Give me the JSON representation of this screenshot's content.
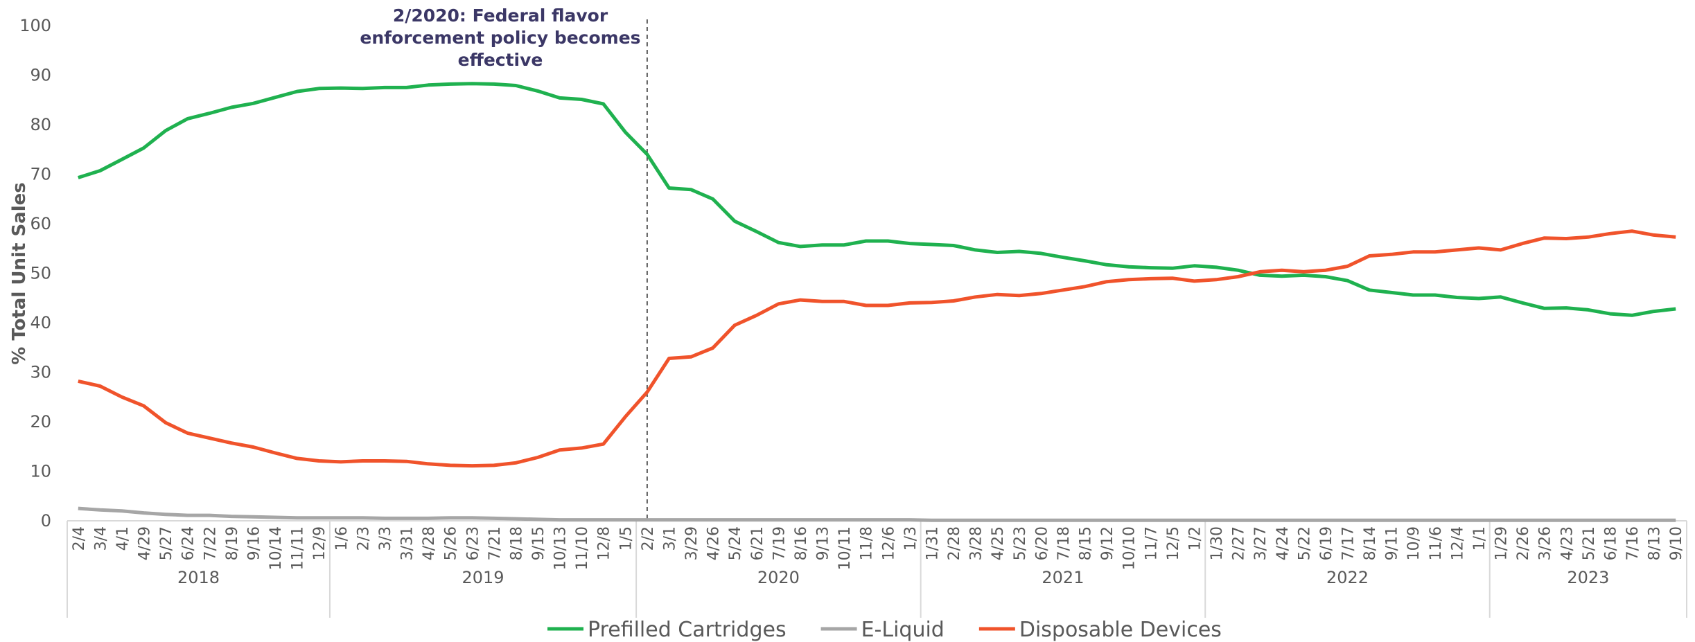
{
  "chart_data": {
    "type": "line",
    "y_axis_label": "% Total Unit Sales",
    "annotation": [
      "2/2020: Federal flavor",
      "enforcement policy becomes",
      "effective"
    ],
    "categories": [
      "2/4",
      "3/4",
      "4/1",
      "4/29",
      "5/27",
      "6/24",
      "7/22",
      "8/19",
      "9/16",
      "10/14",
      "11/11",
      "12/9",
      "1/6",
      "2/3",
      "3/3",
      "3/31",
      "4/28",
      "5/26",
      "6/23",
      "7/21",
      "8/18",
      "9/15",
      "10/13",
      "11/10",
      "12/8",
      "1/5",
      "2/2",
      "3/1",
      "3/29",
      "4/26",
      "5/24",
      "6/21",
      "7/19",
      "8/16",
      "9/13",
      "10/11",
      "11/8",
      "12/6",
      "1/3",
      "1/31",
      "2/28",
      "3/28",
      "4/25",
      "5/23",
      "6/20",
      "7/18",
      "8/15",
      "9/12",
      "10/10",
      "11/7",
      "12/5",
      "1/2",
      "1/30",
      "2/27",
      "3/27",
      "4/24",
      "5/22",
      "6/19",
      "7/17",
      "8/14",
      "9/11",
      "10/9",
      "11/6",
      "12/4",
      "1/1",
      "1/29",
      "2/26",
      "3/26",
      "4/23",
      "5/21",
      "6/18",
      "7/16",
      "8/13",
      "9/10"
    ],
    "groups": [
      {
        "label": "2018",
        "count": 12
      },
      {
        "label": "2019",
        "count": 14
      },
      {
        "label": "2020",
        "count": 13
      },
      {
        "label": "2021",
        "count": 13
      },
      {
        "label": "2022",
        "count": 13
      },
      {
        "label": "2023",
        "count": 9
      }
    ],
    "series": [
      {
        "name": "Prefilled Cartridges",
        "color": "#1fb14f",
        "values": [
          69.3,
          70.7,
          73,
          75.3,
          78.8,
          81.2,
          82.3,
          83.5,
          84.3,
          85.5,
          86.7,
          87.3,
          87.4,
          87.3,
          87.5,
          87.5,
          88,
          88.2,
          88.3,
          88.2,
          87.9,
          86.8,
          85.4,
          85.1,
          84.2,
          78.5,
          74,
          67.2,
          66.9,
          65,
          60.5,
          58.4,
          56.2,
          55.4,
          55.7,
          55.7,
          56.5,
          56.5,
          56,
          55.8,
          55.6,
          54.7,
          54.2,
          54.4,
          54,
          53.2,
          52.5,
          51.7,
          51.3,
          51.1,
          51,
          51.5,
          51.2,
          50.6,
          49.6,
          49.4,
          49.6,
          49.3,
          48.5,
          46.6,
          46.1,
          45.6,
          45.6,
          45.1,
          44.9,
          45.2,
          44,
          42.9,
          43,
          42.6,
          41.8,
          41.5,
          42.3,
          42.8
        ]
      },
      {
        "name": "E-Liquid",
        "color": "#a6a6a6",
        "values": [
          2.5,
          2.2,
          2,
          1.6,
          1.3,
          1.1,
          1.1,
          0.9,
          0.8,
          0.7,
          0.6,
          0.6,
          0.6,
          0.6,
          0.5,
          0.5,
          0.5,
          0.6,
          0.6,
          0.5,
          0.4,
          0.3,
          0.2,
          0.2,
          0.2,
          0.2,
          0.2,
          0.2,
          0.2,
          0.2,
          0.2,
          0.2,
          0.2,
          0.2,
          0.2,
          0.2,
          0.2,
          0.2,
          0.2,
          0.1,
          0.1,
          0.1,
          0.1,
          0.1,
          0.1,
          0.1,
          0.1,
          0.1,
          0.1,
          0.1,
          0.1,
          0.1,
          0.1,
          0.1,
          0.1,
          0.1,
          0.1,
          0.1,
          0.1,
          0.1,
          0.1,
          0.1,
          0.1,
          0.1,
          0.1,
          0.1,
          0.1,
          0.1,
          0.1,
          0.1,
          0.1,
          0.1,
          0.1,
          0.1
        ]
      },
      {
        "name": "Disposable Devices",
        "color": "#f0532b",
        "values": [
          28.2,
          27.2,
          25,
          23.2,
          19.8,
          17.7,
          16.7,
          15.7,
          14.9,
          13.7,
          12.6,
          12.1,
          11.9,
          12.1,
          12.1,
          12,
          11.5,
          11.2,
          11.1,
          11.2,
          11.7,
          12.8,
          14.3,
          14.7,
          15.5,
          21,
          26,
          32.8,
          33.1,
          34.9,
          39.5,
          41.5,
          43.8,
          44.6,
          44.3,
          44.3,
          43.5,
          43.5,
          44,
          44.1,
          44.4,
          45.2,
          45.7,
          45.5,
          45.9,
          46.6,
          47.3,
          48.3,
          48.7,
          48.9,
          49,
          48.4,
          48.7,
          49.3,
          50.3,
          50.6,
          50.3,
          50.6,
          51.4,
          53.5,
          53.8,
          54.3,
          54.3,
          54.7,
          55.1,
          54.7,
          56,
          57.1,
          57,
          57.3,
          58,
          58.5,
          57.7,
          57.3
        ]
      }
    ],
    "ylim": [
      0,
      100
    ],
    "yticks": [
      0,
      10,
      20,
      30,
      40,
      50,
      60,
      70,
      80,
      90,
      100
    ],
    "grid": false,
    "legend": "bottom"
  }
}
